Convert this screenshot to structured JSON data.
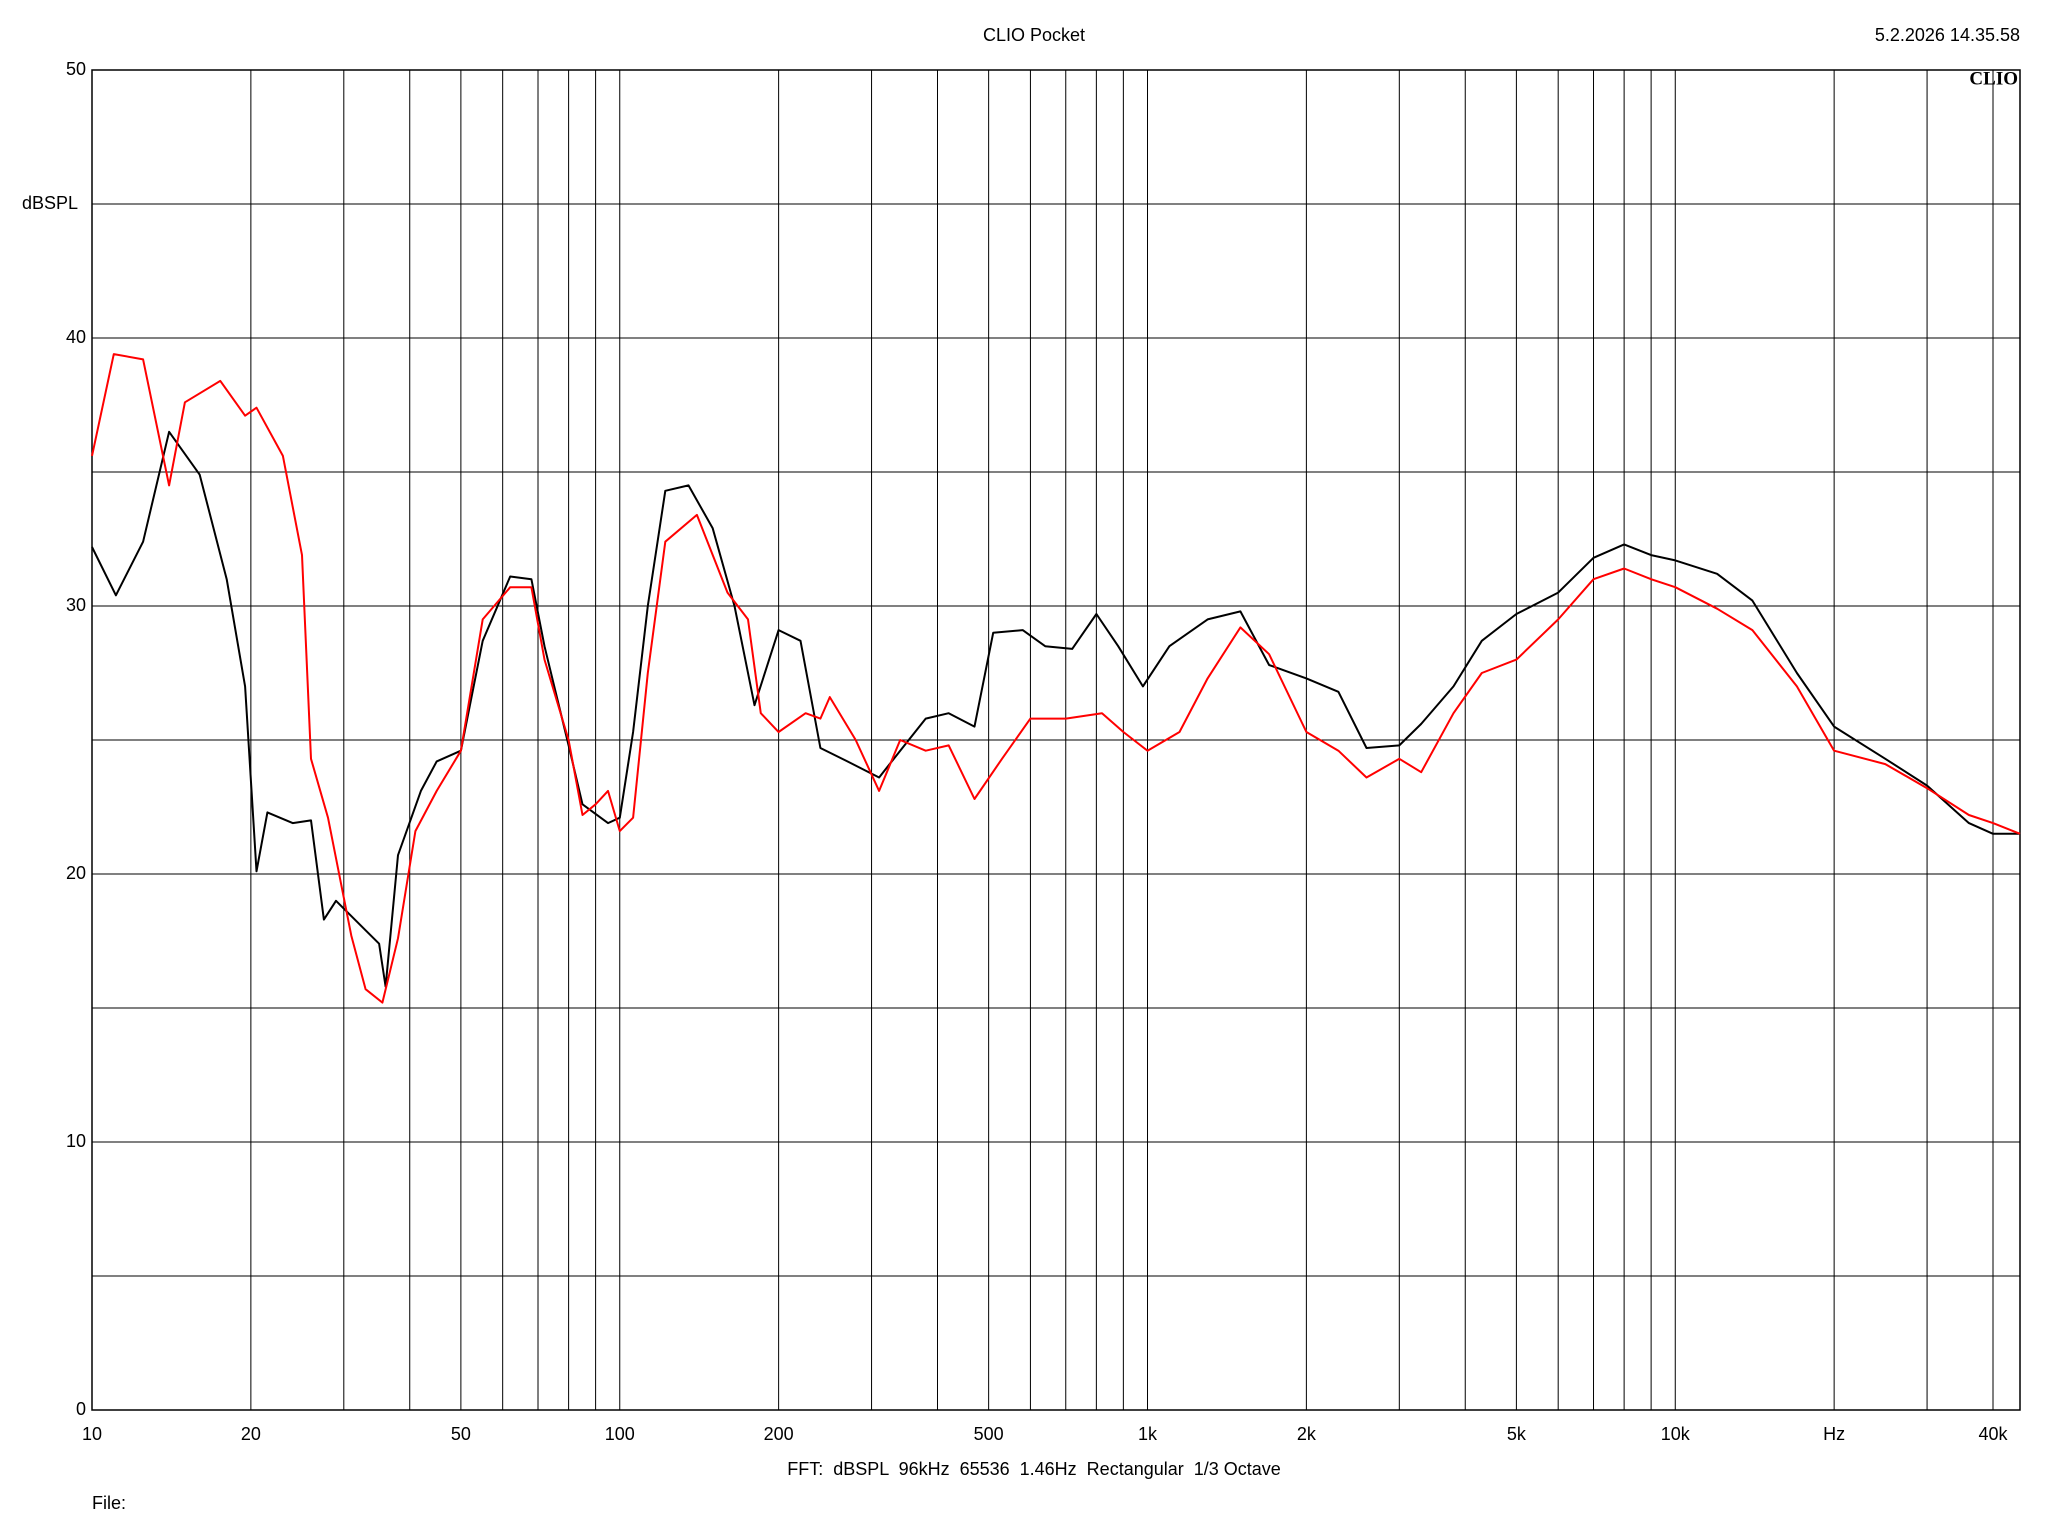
{
  "chart_data": {
    "type": "line",
    "title": "CLIO Pocket",
    "timestamp": "5.2.2026 14.35.58",
    "logo": "CLIO",
    "ylabel": "dBSPL",
    "footer": "FFT:  dBSPL  96kHz  65536  1.46Hz  Rectangular  1/3 Octave",
    "file_label": "File:",
    "xscale": "log",
    "grid": true,
    "xlim": [
      10,
      45000
    ],
    "ylim": [
      0,
      50
    ],
    "xticks": [
      10,
      20,
      50,
      100,
      200,
      500,
      {
        "value": 1000,
        "label": "1k"
      },
      {
        "value": 2000,
        "label": "2k"
      },
      {
        "value": 5000,
        "label": "5k"
      },
      {
        "value": 10000,
        "label": "10k"
      },
      {
        "value": 20000,
        "label": "Hz"
      },
      {
        "value": 40000,
        "label": "40k"
      }
    ],
    "minor_xticks": [
      30,
      40,
      60,
      70,
      80,
      90,
      300,
      400,
      600,
      700,
      800,
      900,
      3000,
      4000,
      6000,
      7000,
      8000,
      9000,
      30000
    ],
    "yticks": [
      0,
      10,
      20,
      30,
      40,
      50
    ],
    "minor_yticks": [
      5,
      15,
      25,
      35,
      45
    ],
    "series": [
      {
        "color": "#000000",
        "x": [
          10,
          11.1,
          12.5,
          14,
          16,
          18,
          19.5,
          20.5,
          21.5,
          24,
          26,
          27.5,
          29,
          33,
          35,
          36,
          38,
          42,
          45,
          50,
          55,
          62,
          68,
          72,
          80,
          85,
          95,
          100,
          106,
          113,
          122,
          135,
          150,
          165,
          180,
          200,
          220,
          240,
          270,
          310,
          340,
          380,
          420,
          470,
          510,
          580,
          640,
          720,
          800,
          880,
          980,
          1100,
          1300,
          1500,
          1700,
          2000,
          2300,
          2600,
          3000,
          3300,
          3800,
          4300,
          5000,
          6000,
          7000,
          8000,
          9000,
          10000,
          12000,
          14000,
          17000,
          20000,
          25000,
          30000,
          36000,
          40000,
          45000
        ],
        "values": [
          32.2,
          30.4,
          32.4,
          36.5,
          34.9,
          31.0,
          27,
          20.1,
          22.3,
          21.9,
          22,
          18.3,
          19,
          17.9,
          17.4,
          15.8,
          20.7,
          23.1,
          24.2,
          24.6,
          28.7,
          31.1,
          31,
          28.5,
          24.8,
          22.6,
          21.9,
          22.1,
          25.3,
          30,
          34.3,
          34.5,
          32.9,
          30,
          26.3,
          29.1,
          28.7,
          24.7,
          24.2,
          23.6,
          24.6,
          25.8,
          26,
          25.5,
          29,
          29.1,
          28.5,
          28.4,
          29.7,
          28.5,
          27,
          28.5,
          29.5,
          29.8,
          27.8,
          27.3,
          26.8,
          24.7,
          24.8,
          25.6,
          27,
          28.7,
          29.7,
          30.5,
          31.8,
          32.3,
          31.9,
          31.7,
          31.2,
          30.2,
          27.5,
          25.5,
          24.3,
          23.3,
          21.9,
          21.5,
          21.5
        ]
      },
      {
        "color": "#ff0000",
        "x": [
          10,
          11,
          12.5,
          14,
          15,
          17.5,
          19.5,
          20.5,
          23,
          25,
          26,
          28,
          31,
          33,
          35.5,
          38,
          41,
          45,
          50,
          55,
          62,
          68,
          72,
          80,
          85,
          90,
          95,
          100,
          106,
          113,
          122,
          140,
          160,
          175,
          185,
          200,
          225,
          240,
          250,
          280,
          310,
          340,
          380,
          420,
          470,
          530,
          600,
          700,
          820,
          900,
          1000,
          1150,
          1300,
          1500,
          1700,
          2000,
          2300,
          2600,
          3000,
          3300,
          3800,
          4300,
          5000,
          6000,
          7000,
          8000,
          9000,
          10000,
          12000,
          14000,
          17000,
          20000,
          25000,
          30000,
          36000,
          40000,
          45000
        ],
        "values": [
          35.6,
          39.4,
          39.2,
          34.5,
          37.6,
          38.4,
          37.1,
          37.4,
          35.6,
          31.9,
          24.3,
          22.1,
          17.7,
          15.7,
          15.2,
          17.6,
          21.6,
          23.1,
          24.6,
          29.5,
          30.7,
          30.7,
          28,
          25,
          22.2,
          22.6,
          23.1,
          21.6,
          22.1,
          27.5,
          32.4,
          33.4,
          30.5,
          29.5,
          26,
          25.3,
          26,
          25.8,
          26.6,
          25,
          23.1,
          25,
          24.6,
          24.8,
          22.8,
          24.3,
          25.8,
          25.8,
          26,
          25.3,
          24.6,
          25.3,
          27.3,
          29.2,
          28.2,
          25.3,
          24.6,
          23.6,
          24.3,
          23.8,
          26,
          27.5,
          28,
          29.5,
          31,
          31.4,
          31,
          30.7,
          29.9,
          29.1,
          27,
          24.6,
          24.1,
          23.2,
          22.2,
          21.9,
          21.5
        ]
      }
    ]
  }
}
